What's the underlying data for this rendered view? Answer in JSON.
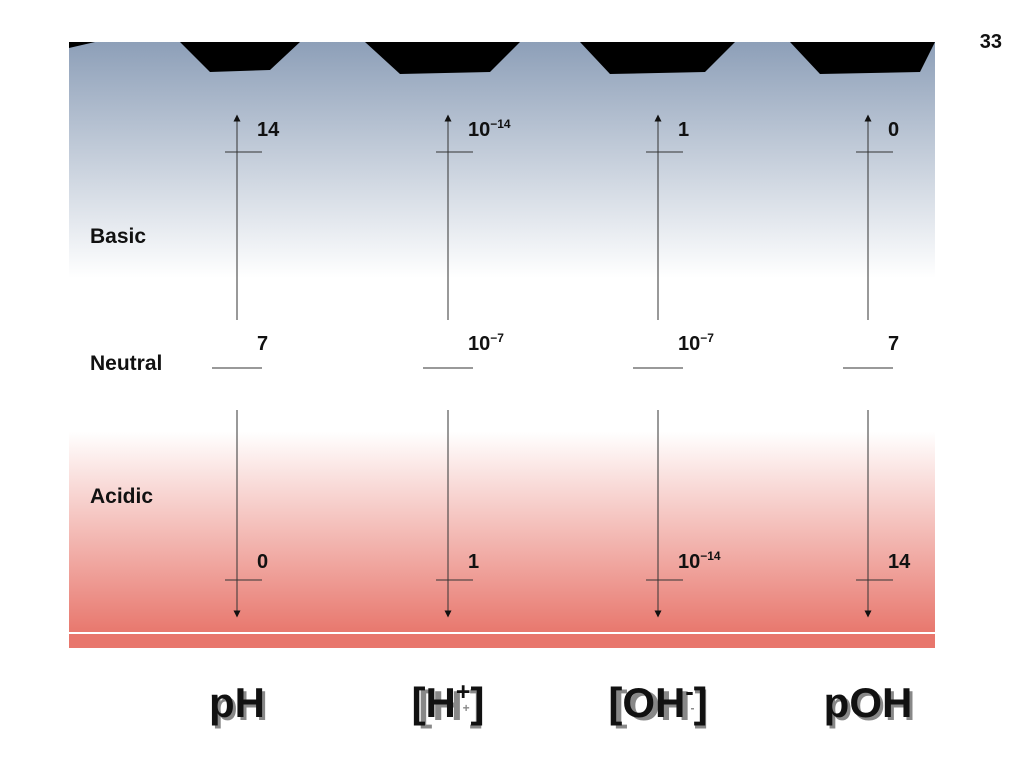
{
  "page_number": "33",
  "regions": [
    "Basic",
    "Neutral",
    "Acidic"
  ],
  "columns": [
    {
      "header": [
        {
          "text": "pH"
        }
      ],
      "top": [
        {
          "text": "14"
        }
      ],
      "middle": [
        {
          "text": "7"
        }
      ],
      "bottom": [
        {
          "text": "0"
        }
      ]
    },
    {
      "header": [
        {
          "text": "[H"
        },
        {
          "sup": "+"
        },
        {
          "text": "]"
        }
      ],
      "top": [
        {
          "text": "10"
        },
        {
          "sup": "−14"
        }
      ],
      "middle": [
        {
          "text": "10"
        },
        {
          "sup": "−7"
        }
      ],
      "bottom": [
        {
          "text": "1"
        }
      ]
    },
    {
      "header": [
        {
          "text": "[OH"
        },
        {
          "sup": "-"
        },
        {
          "text": "]"
        }
      ],
      "top": [
        {
          "text": "1"
        }
      ],
      "middle": [
        {
          "text": "10"
        },
        {
          "sup": "−7"
        }
      ],
      "bottom": [
        {
          "text": "10"
        },
        {
          "sup": "−14"
        }
      ]
    },
    {
      "header": [
        {
          "text": "pOH"
        }
      ],
      "top": [
        {
          "text": "0"
        }
      ],
      "middle": [
        {
          "text": "7"
        }
      ],
      "bottom": [
        {
          "text": "14"
        }
      ]
    }
  ]
}
